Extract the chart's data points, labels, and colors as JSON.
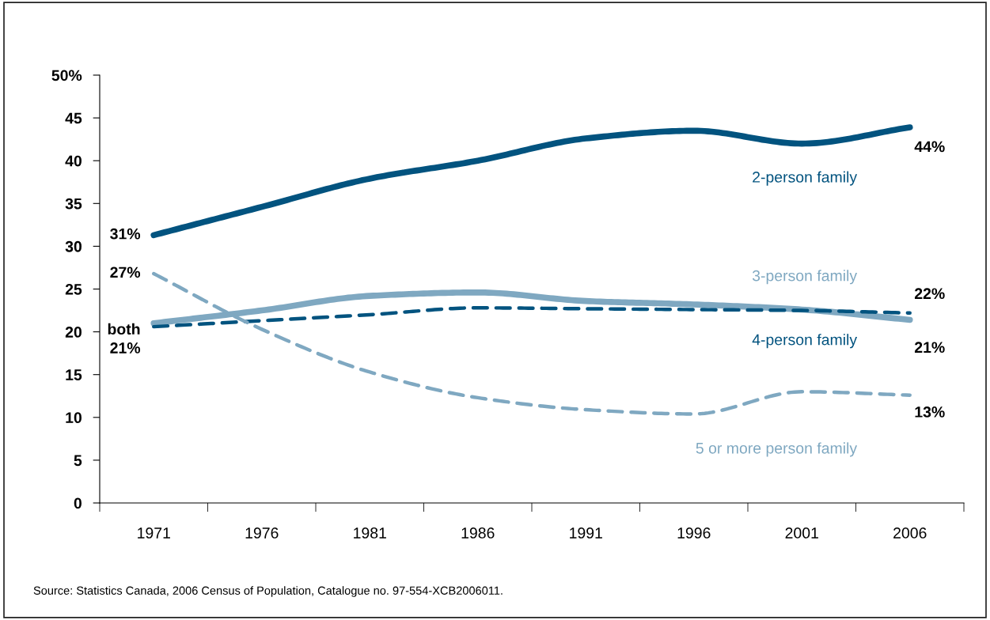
{
  "chart_data": {
    "type": "line",
    "categories": [
      "1971",
      "1976",
      "1981",
      "1986",
      "1991",
      "1996",
      "2001",
      "2006"
    ],
    "ylim": [
      0,
      50
    ],
    "yticks": [
      0,
      5,
      10,
      15,
      20,
      25,
      30,
      35,
      40,
      45,
      {
        "value": 50,
        "label": "50%"
      }
    ],
    "grid": false,
    "legend": false,
    "marker": "none",
    "series": [
      {
        "name": "2-person family",
        "color": "#02537f",
        "line_style": "solid",
        "values": [
          31.3,
          34.6,
          37.9,
          40.0,
          42.6,
          43.5,
          42.0,
          43.9
        ],
        "value_labels": [
          "31%",
          null,
          null,
          null,
          null,
          null,
          null,
          "44%"
        ]
      },
      {
        "name": "3-person family",
        "color": "#7fa8c1",
        "line_style": "solid",
        "values": [
          21.0,
          22.5,
          24.2,
          24.6,
          23.6,
          23.2,
          22.6,
          21.4
        ],
        "value_labels": [
          "both\n21%",
          null,
          null,
          null,
          null,
          null,
          null,
          "21%"
        ]
      },
      {
        "name": "4-person family",
        "color": "#02537f",
        "line_style": "dashed",
        "values": [
          20.6,
          21.3,
          22.0,
          22.8,
          22.7,
          22.6,
          22.5,
          22.2
        ],
        "value_labels": [
          null,
          null,
          null,
          null,
          null,
          null,
          null,
          "22%"
        ]
      },
      {
        "name": "5 or more person family",
        "color": "#7fa8c1",
        "line_style": "dashed",
        "values": [
          26.8,
          20.3,
          15.3,
          12.3,
          10.9,
          10.4,
          13.0,
          12.6
        ],
        "value_labels": [
          "27%",
          null,
          null,
          null,
          null,
          null,
          null,
          "13%"
        ]
      }
    ],
    "annotations": [
      "Source: Statistics Canada, 2006 Census of Population, Catalogue no. 97-554-XCB2006011."
    ]
  }
}
